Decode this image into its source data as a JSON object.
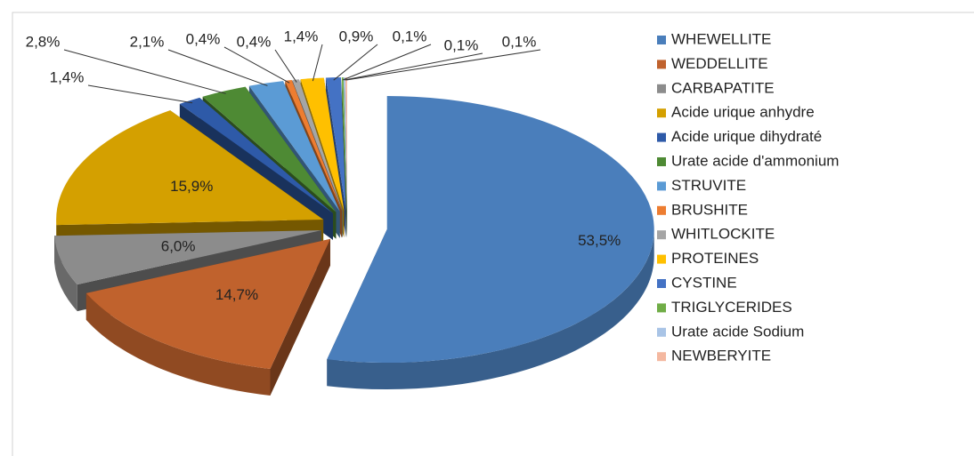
{
  "chart_data": {
    "type": "pie",
    "categories": [
      "WHEWELLITE",
      "WEDDELLITE",
      "CARBAPATITE",
      "Acide urique anhydre",
      "Acide urique dihydraté",
      "Urate acide d'ammonium",
      "STRUVITE",
      "BRUSHITE",
      "WHITLOCKITE",
      "PROTEINES",
      "CYSTINE",
      "TRIGLYCERIDES",
      "Urate acide Sodium",
      "NEWBERYITE"
    ],
    "values": [
      53.5,
      14.7,
      6.0,
      15.9,
      1.4,
      2.8,
      2.1,
      0.4,
      0.4,
      1.4,
      0.9,
      0.1,
      0.1,
      0.1
    ],
    "value_labels": [
      "53,5%",
      "14,7%",
      "6,0%",
      "15,9%",
      "1,4%",
      "2,8%",
      "2,1%",
      "0,4%",
      "0,4%",
      "1,4%",
      "0,9%",
      "0,1%",
      "0,1%",
      "0,1%"
    ],
    "colors": [
      "#4a7ebb",
      "#c0622d",
      "#8c8c8c",
      "#d4a000",
      "#2e5aa8",
      "#4e8a34",
      "#5b9bd5",
      "#ed7d31",
      "#a5a5a5",
      "#ffc000",
      "#4472c4",
      "#70ad47",
      "#a9c4e6",
      "#f4b8a0"
    ],
    "legend": "right"
  }
}
